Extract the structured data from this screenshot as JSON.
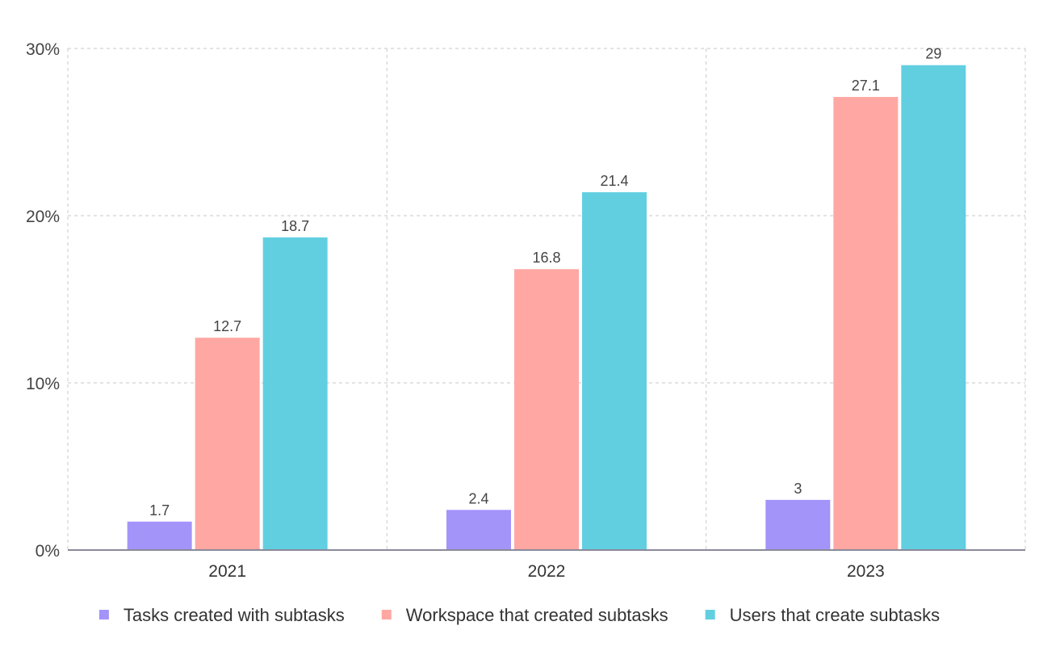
{
  "chart_data": {
    "type": "bar",
    "categories": [
      "2021",
      "2022",
      "2023"
    ],
    "series": [
      {
        "name": "Tasks created with subtasks",
        "values": [
          1.7,
          2.4,
          3
        ],
        "color": "#a394fa"
      },
      {
        "name": "Workspace that created subtasks",
        "values": [
          12.7,
          16.8,
          27.1
        ],
        "color": "#ffa8a3"
      },
      {
        "name": "Users that create subtasks",
        "values": [
          18.7,
          21.4,
          29
        ],
        "color": "#62cfe1"
      }
    ],
    "y_ticks": [
      "0%",
      "10%",
      "20%",
      "30%"
    ],
    "ylim": [
      0,
      30
    ],
    "grid": true,
    "legend_position": "bottom",
    "data_labels": true
  }
}
